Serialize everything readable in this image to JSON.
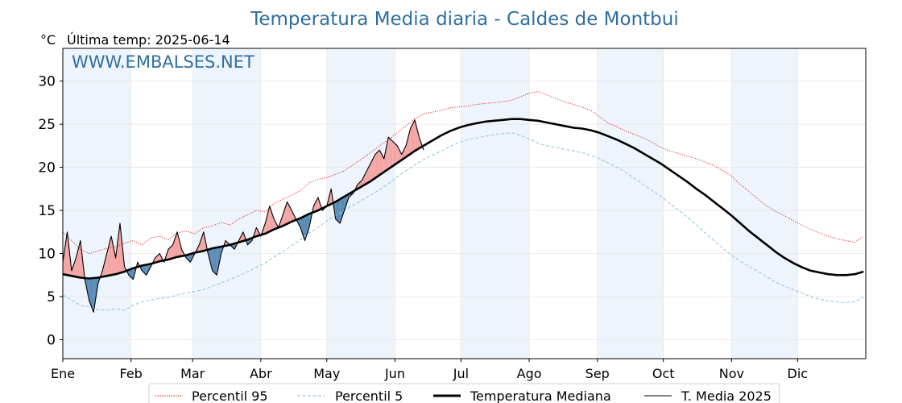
{
  "colors": {
    "title": "#2f6f9f",
    "watermark": "#2f6f9f",
    "p95": "#e31a1c",
    "p5": "#9ecae1",
    "median": "#000000",
    "media": "#000000",
    "fill_above": "#f4a6a6",
    "fill_below": "#5b8db8",
    "band": "#eef4fb"
  },
  "chart_data": {
    "type": "line",
    "title": "Temperatura Media diaria - Caldes de Montbui",
    "ylabel": "°C",
    "subtitle": "Última temp: 2025-06-14",
    "watermark": "WWW.EMBALSES.NET",
    "ylim": [
      -2.2,
      33.8
    ],
    "xlim": [
      1,
      366
    ],
    "yticks": [
      0,
      5,
      10,
      15,
      20,
      25,
      30
    ],
    "month_labels": [
      "Ene",
      "Feb",
      "Mar",
      "Abr",
      "May",
      "Jun",
      "Jul",
      "Ago",
      "Sep",
      "Oct",
      "Nov",
      "Dic"
    ],
    "month_start_days": [
      1,
      32,
      60,
      91,
      121,
      152,
      182,
      213,
      244,
      274,
      305,
      335
    ],
    "grid": true,
    "legend": {
      "position": "bottom",
      "entries": [
        "Percentil 95",
        "Percentil 5",
        "Temperatura Mediana",
        "T. Media 2025"
      ]
    },
    "series": [
      {
        "name": "Percentil 95",
        "style": "dotted",
        "x": [
          1,
          5,
          9,
          13,
          17,
          21,
          25,
          29,
          33,
          37,
          41,
          45,
          49,
          53,
          57,
          61,
          65,
          69,
          73,
          77,
          81,
          85,
          89,
          93,
          97,
          101,
          105,
          109,
          113,
          117,
          121,
          125,
          129,
          133,
          137,
          141,
          145,
          149,
          153,
          157,
          161,
          165,
          169,
          173,
          177,
          181,
          185,
          189,
          193,
          197,
          201,
          205,
          209,
          213,
          217,
          221,
          225,
          229,
          233,
          237,
          241,
          245,
          249,
          253,
          257,
          261,
          265,
          269,
          273,
          277,
          281,
          285,
          289,
          293,
          297,
          301,
          305,
          309,
          313,
          317,
          321,
          325,
          329,
          333,
          337,
          341,
          345,
          349,
          353,
          357,
          361,
          365
        ],
        "y": [
          12.5,
          11.5,
          10.5,
          10.0,
          10.3,
          10.6,
          10.8,
          11.2,
          11.5,
          11.0,
          11.8,
          12.0,
          11.6,
          12.4,
          12.6,
          12.3,
          13.0,
          13.2,
          13.6,
          13.3,
          14.0,
          14.5,
          15.0,
          14.8,
          15.8,
          16.3,
          16.8,
          17.3,
          18.2,
          18.6,
          18.8,
          19.2,
          19.6,
          20.3,
          21.0,
          21.7,
          22.5,
          23.2,
          24.0,
          24.8,
          25.6,
          26.2,
          26.4,
          26.6,
          26.9,
          27.0,
          27.1,
          27.3,
          27.4,
          27.5,
          27.6,
          27.8,
          28.2,
          28.6,
          28.8,
          28.4,
          28.0,
          27.6,
          27.3,
          27.0,
          26.6,
          25.9,
          25.1,
          24.7,
          24.2,
          23.8,
          23.4,
          22.9,
          22.3,
          21.9,
          21.6,
          21.3,
          21.0,
          20.6,
          20.2,
          19.6,
          19.0,
          18.0,
          17.2,
          16.3,
          15.5,
          14.9,
          14.4,
          13.8,
          13.3,
          12.8,
          12.4,
          12.0,
          11.7,
          11.5,
          11.3,
          12.0
        ]
      },
      {
        "name": "Percentil 5",
        "style": "dashed",
        "x": [
          1,
          5,
          9,
          13,
          17,
          21,
          25,
          29,
          33,
          37,
          41,
          45,
          49,
          53,
          57,
          61,
          65,
          69,
          73,
          77,
          81,
          85,
          89,
          93,
          97,
          101,
          105,
          109,
          113,
          117,
          121,
          125,
          129,
          133,
          137,
          141,
          145,
          149,
          153,
          157,
          161,
          165,
          169,
          173,
          177,
          181,
          185,
          189,
          193,
          197,
          201,
          205,
          209,
          213,
          217,
          221,
          225,
          229,
          233,
          237,
          241,
          245,
          249,
          253,
          257,
          261,
          265,
          269,
          273,
          277,
          281,
          285,
          289,
          293,
          297,
          301,
          305,
          309,
          313,
          317,
          321,
          325,
          329,
          333,
          337,
          341,
          345,
          349,
          353,
          357,
          361,
          365
        ],
        "y": [
          5.2,
          4.6,
          4.0,
          3.8,
          3.5,
          3.4,
          3.6,
          3.4,
          4.0,
          4.4,
          4.6,
          4.8,
          4.9,
          5.2,
          5.4,
          5.6,
          5.8,
          6.2,
          6.6,
          7.0,
          7.4,
          7.9,
          8.4,
          8.9,
          9.6,
          10.2,
          10.9,
          11.6,
          12.4,
          13.0,
          13.8,
          14.4,
          15.0,
          15.6,
          16.2,
          16.8,
          17.4,
          18.1,
          18.9,
          19.6,
          20.3,
          20.9,
          21.4,
          21.9,
          22.4,
          22.9,
          23.2,
          23.4,
          23.6,
          23.8,
          23.9,
          24.0,
          23.7,
          23.3,
          22.8,
          22.5,
          22.3,
          22.1,
          21.9,
          21.7,
          21.4,
          21.0,
          20.5,
          20.0,
          19.4,
          18.7,
          18.0,
          17.3,
          16.6,
          15.8,
          15.0,
          14.2,
          13.3,
          12.4,
          11.5,
          10.6,
          9.8,
          9.1,
          8.5,
          7.9,
          7.3,
          6.7,
          6.2,
          5.8,
          5.4,
          5.0,
          4.7,
          4.5,
          4.4,
          4.3,
          4.4,
          4.9
        ]
      },
      {
        "name": "Temperatura Mediana",
        "style": "solid-thick",
        "x": [
          1,
          5,
          9,
          13,
          17,
          21,
          25,
          29,
          33,
          37,
          41,
          45,
          49,
          53,
          57,
          61,
          65,
          69,
          73,
          77,
          81,
          85,
          89,
          93,
          97,
          101,
          105,
          109,
          113,
          117,
          121,
          125,
          129,
          133,
          137,
          141,
          145,
          149,
          153,
          157,
          161,
          165,
          169,
          173,
          177,
          181,
          185,
          189,
          193,
          197,
          201,
          205,
          209,
          213,
          217,
          221,
          225,
          229,
          233,
          237,
          241,
          245,
          249,
          253,
          257,
          261,
          265,
          269,
          273,
          277,
          281,
          285,
          289,
          293,
          297,
          301,
          305,
          309,
          313,
          317,
          321,
          325,
          329,
          333,
          337,
          341,
          345,
          349,
          353,
          357,
          361,
          365
        ],
        "y": [
          7.6,
          7.4,
          7.2,
          7.1,
          7.2,
          7.4,
          7.6,
          7.9,
          8.3,
          8.6,
          8.8,
          9.1,
          9.3,
          9.6,
          9.8,
          10.1,
          10.3,
          10.6,
          10.8,
          11.0,
          11.3,
          11.6,
          12.0,
          12.3,
          12.8,
          13.2,
          13.7,
          14.1,
          14.6,
          15.0,
          15.5,
          16.0,
          16.6,
          17.2,
          17.8,
          18.4,
          19.1,
          19.8,
          20.5,
          21.2,
          21.9,
          22.5,
          23.1,
          23.7,
          24.2,
          24.6,
          24.9,
          25.1,
          25.3,
          25.4,
          25.5,
          25.6,
          25.6,
          25.5,
          25.4,
          25.2,
          25.0,
          24.8,
          24.6,
          24.5,
          24.3,
          24.0,
          23.6,
          23.2,
          22.7,
          22.2,
          21.6,
          21.0,
          20.4,
          19.7,
          19.0,
          18.3,
          17.5,
          16.8,
          16.0,
          15.2,
          14.4,
          13.5,
          12.6,
          11.8,
          11.0,
          10.2,
          9.5,
          8.9,
          8.4,
          8.0,
          7.8,
          7.6,
          7.5,
          7.5,
          7.6,
          7.9
        ]
      },
      {
        "name": "T. Media 2025",
        "style": "solid-thin",
        "x": [
          1,
          3,
          5,
          7,
          9,
          11,
          13,
          15,
          17,
          19,
          21,
          23,
          25,
          27,
          29,
          31,
          33,
          35,
          37,
          39,
          41,
          43,
          45,
          47,
          49,
          51,
          53,
          55,
          57,
          59,
          61,
          63,
          65,
          67,
          69,
          71,
          73,
          75,
          77,
          79,
          81,
          83,
          85,
          87,
          89,
          91,
          93,
          95,
          97,
          99,
          101,
          103,
          105,
          107,
          109,
          111,
          113,
          115,
          117,
          119,
          121,
          123,
          125,
          127,
          129,
          131,
          133,
          135,
          137,
          139,
          141,
          143,
          145,
          147,
          149,
          151,
          153,
          155,
          157,
          159,
          161,
          163,
          165
        ],
        "y": [
          9.0,
          12.5,
          8.0,
          9.5,
          11.5,
          7.0,
          4.5,
          3.2,
          6.5,
          8.0,
          10.0,
          12.0,
          9.5,
          13.5,
          8.5,
          7.5,
          7.0,
          9.0,
          8.0,
          7.5,
          8.5,
          9.5,
          10.0,
          9.0,
          10.5,
          11.0,
          12.5,
          10.5,
          9.5,
          9.0,
          10.0,
          11.0,
          12.5,
          10.0,
          8.0,
          7.5,
          10.0,
          11.5,
          11.0,
          10.5,
          11.5,
          12.5,
          11.0,
          11.5,
          13.0,
          12.0,
          13.5,
          15.5,
          14.0,
          13.0,
          14.5,
          16.0,
          15.0,
          14.0,
          13.0,
          11.5,
          13.0,
          15.5,
          16.5,
          15.0,
          15.5,
          17.5,
          14.0,
          13.5,
          15.0,
          16.5,
          17.0,
          18.0,
          18.5,
          19.5,
          20.5,
          21.5,
          22.0,
          21.0,
          23.5,
          23.0,
          22.5,
          21.5,
          22.5,
          24.5,
          25.5,
          23.5,
          22.0
        ]
      }
    ]
  }
}
